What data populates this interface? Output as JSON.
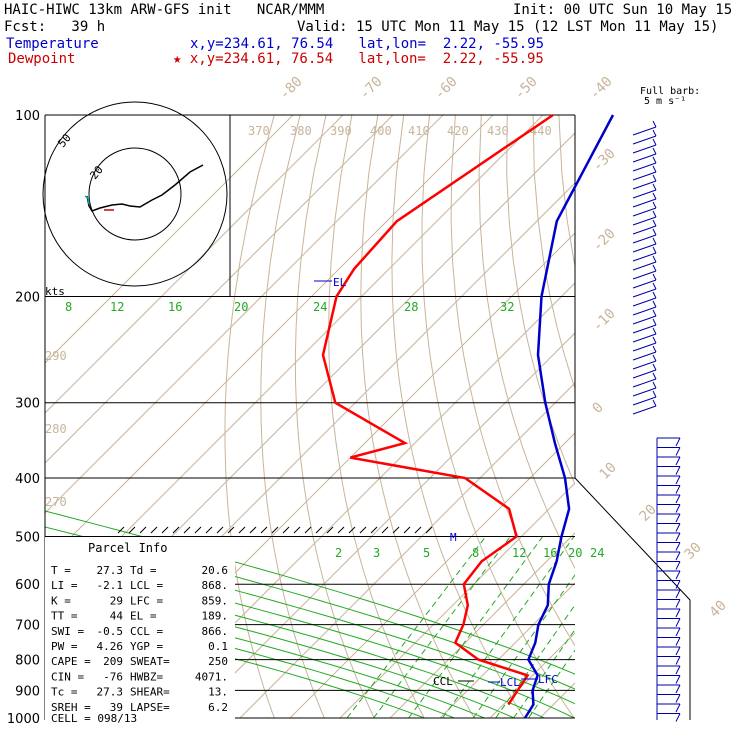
{
  "header": {
    "line1_left": "HAIC-HIWC 13km ARW-GFS init   NCAR/MMM",
    "line1_right": "Init: 00 UTC Sun 10 May 15",
    "line2_left": "Fcst:   39 h",
    "line2_right": "Valid: 15 UTC Mon 11 May 15 (12 LST Mon 11 May 15)",
    "temperature_label": "Temperature",
    "temperature_loc": "x,y=234.61, 76.54   lat,lon=  2.22, -55.95",
    "dewpoint_label": "Dewpoint",
    "dewpoint_loc": "x,y=234.61, 76.54   lat,lon=  2.22, -55.95"
  },
  "barb_label": {
    "line1": "Full barb:",
    "line2": "5 m s⁻¹"
  },
  "hodograph": {
    "ring_labels": [
      "20",
      "50"
    ],
    "units_label": "kts"
  },
  "parcel_info": {
    "title": "Parcel Info",
    "rows": [
      [
        "T   =",
        "27.3",
        "Td  =",
        "20.6"
      ],
      [
        "LI  =",
        "-2.1",
        "LCL =",
        "868."
      ],
      [
        "K   =",
        "29",
        "LFC =",
        "859."
      ],
      [
        "TT  =",
        "44",
        "EL  =",
        "189."
      ],
      [
        "SWI =",
        "-0.5",
        "CCL =",
        "866."
      ],
      [
        "PW  =",
        "4.26",
        "YGP =",
        "0.1"
      ],
      [
        "CAPE =",
        "209",
        "SWEAT=",
        "250"
      ],
      [
        "CIN =",
        "-76",
        "HWBZ=",
        "4071."
      ],
      [
        "Tc  =",
        "27.3",
        "SHEAR=",
        "13."
      ],
      [
        "SREH =",
        "39",
        "LAPSE=",
        "6.2"
      ]
    ],
    "cell": "CELL = 098/13"
  },
  "levels_labels": {
    "el": "EL",
    "ccl": "CCL",
    "lcl": "LCL",
    "lfc": "LFC",
    "m": "M"
  },
  "colors": {
    "temperature": "#0000cc",
    "dewpoint": "#ff0000",
    "isotherm": "#c8b49a",
    "mixing": "#22aa22",
    "adiabat": "#c8b49a"
  },
  "chart_data": {
    "type": "line",
    "title": "",
    "xlabel": "",
    "ylabel": "",
    "skewt": true,
    "pressure_levels": [
      100,
      200,
      300,
      400,
      500,
      600,
      700,
      800,
      900,
      1000
    ],
    "isotherm_labels": [
      "-80",
      "-70",
      "-60",
      "-50",
      "-40",
      "-30",
      "-20",
      "-10",
      "0",
      "10",
      "20",
      "30",
      "40"
    ],
    "theta_labels": [
      "370",
      "380",
      "390",
      "400",
      "410",
      "420",
      "430",
      "440"
    ],
    "left_theta_labels": [
      "290",
      "280",
      "270"
    ],
    "mixing_ratio_labels_upper": [
      "8",
      "12",
      "16",
      "20",
      "24",
      "28",
      "32"
    ],
    "mixing_ratio_labels_lower": [
      "2",
      "3",
      "5",
      "8",
      "12",
      "16",
      "20",
      "24"
    ],
    "series": [
      {
        "name": "Temperature",
        "points": [
          [
            100,
            -76
          ],
          [
            150,
            -66
          ],
          [
            200,
            -54
          ],
          [
            250,
            -43
          ],
          [
            300,
            -32
          ],
          [
            350,
            -22
          ],
          [
            400,
            -13
          ],
          [
            450,
            -6
          ],
          [
            500,
            -2
          ],
          [
            550,
            2
          ],
          [
            600,
            5
          ],
          [
            650,
            9
          ],
          [
            700,
            11
          ],
          [
            750,
            14
          ],
          [
            800,
            16
          ],
          [
            850,
            21
          ],
          [
            900,
            23
          ],
          [
            950,
            26
          ],
          [
            1000,
            27
          ]
        ]
      },
      {
        "name": "Dewpoint",
        "points": [
          [
            100,
            -88
          ],
          [
            150,
            -98
          ],
          [
            180,
            -97
          ],
          [
            200,
            -95
          ],
          [
            250,
            -86
          ],
          [
            300,
            -74
          ],
          [
            350,
            -52
          ],
          [
            370,
            -60
          ],
          [
            400,
            -33
          ],
          [
            450,
            -18
          ],
          [
            500,
            -11
          ],
          [
            550,
            -13
          ],
          [
            600,
            -12
          ],
          [
            650,
            -7
          ],
          [
            700,
            -4
          ],
          [
            750,
            -2
          ],
          [
            800,
            6
          ],
          [
            850,
            19
          ],
          [
            900,
            20
          ],
          [
            950,
            21
          ]
        ]
      }
    ]
  }
}
